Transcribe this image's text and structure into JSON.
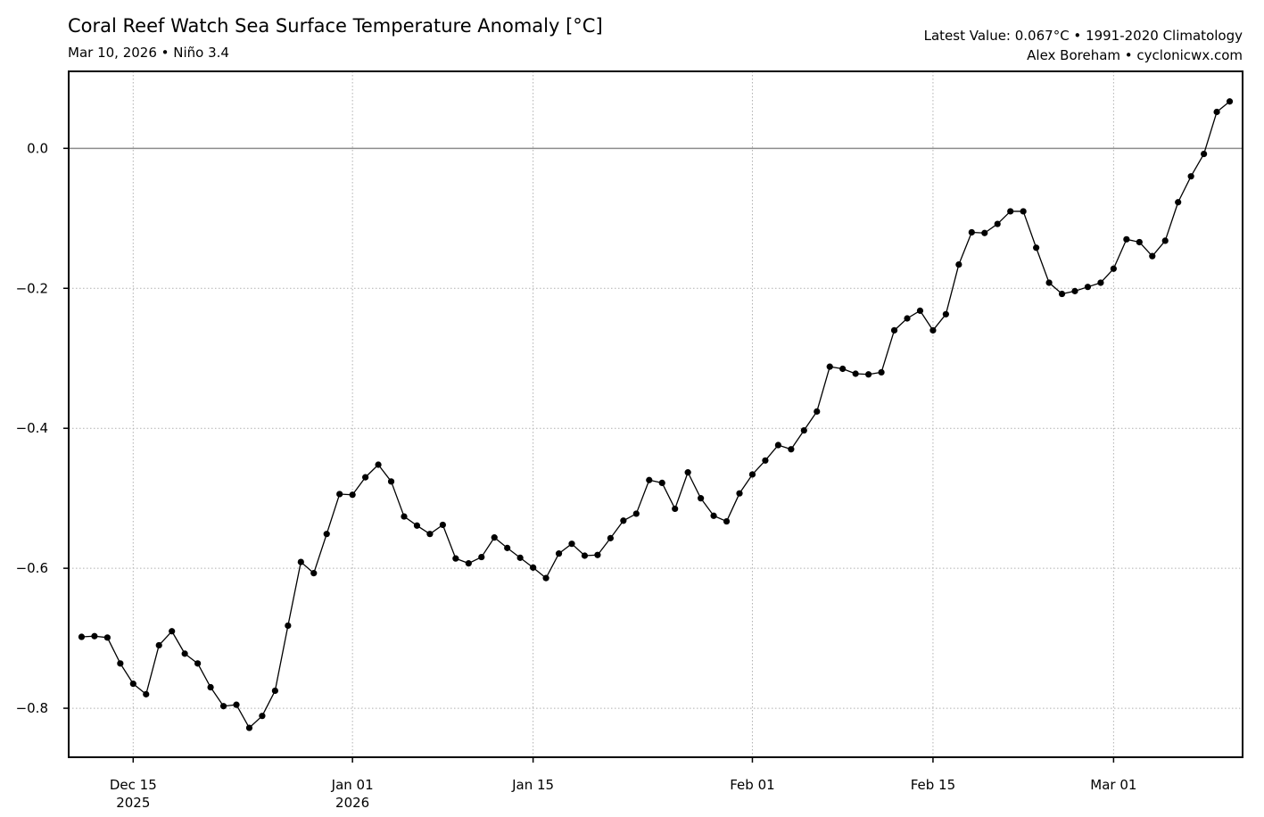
{
  "header": {
    "title": "Coral Reef Watch Sea Surface Temperature Anomaly [°C]",
    "subtitle": "Mar 10, 2026 • Niño 3.4",
    "info_line1": "Latest Value: 0.067°C • 1991-2020 Climatology",
    "info_line2": "Alex Boreham • cyclonicwx.com"
  },
  "chart_data": {
    "type": "line",
    "title": "Coral Reef Watch Sea Surface Temperature Anomaly [°C]",
    "subtitle": "Mar 10, 2026 • Niño 3.4",
    "xlabel": "",
    "ylabel": "",
    "x_start": "2025-12-11",
    "x_end": "2026-03-10",
    "xlim": [
      "2025-12-10",
      "2026-03-11"
    ],
    "ylim": [
      -0.87,
      0.11
    ],
    "grid": true,
    "grid_style": "dotted",
    "zero_line": true,
    "line_color": "#000000",
    "marker": "circle",
    "yticks": [
      0.0,
      -0.2,
      -0.4,
      -0.6,
      -0.8
    ],
    "ytick_labels": [
      "0.0",
      "−0.2",
      "−0.4",
      "−0.6",
      "−0.8"
    ],
    "xticks": [
      {
        "date": "2025-12-15",
        "label": "Dec 15",
        "sublabel": "2025"
      },
      {
        "date": "2026-01-01",
        "label": "Jan 01",
        "sublabel": "2026"
      },
      {
        "date": "2026-01-15",
        "label": "Jan 15",
        "sublabel": ""
      },
      {
        "date": "2026-02-01",
        "label": "Feb 01",
        "sublabel": ""
      },
      {
        "date": "2026-02-15",
        "label": "Feb 15",
        "sublabel": ""
      },
      {
        "date": "2026-03-01",
        "label": "Mar 01",
        "sublabel": ""
      }
    ],
    "series": [
      {
        "values": [
          -0.698,
          -0.697,
          -0.699,
          -0.736,
          -0.765,
          -0.78,
          -0.71,
          -0.69,
          -0.722,
          -0.736,
          -0.77,
          -0.797,
          -0.795,
          -0.828,
          -0.811,
          -0.775,
          -0.682,
          -0.591,
          -0.607,
          -0.551,
          -0.494,
          -0.495,
          -0.47,
          -0.452,
          -0.476,
          -0.526,
          -0.539,
          -0.551,
          -0.538,
          -0.586,
          -0.593,
          -0.584,
          -0.556,
          -0.571,
          -0.585,
          -0.599,
          -0.614,
          -0.579,
          -0.565,
          -0.582,
          -0.581,
          -0.557,
          -0.532,
          -0.522,
          -0.474,
          -0.478,
          -0.515,
          -0.463,
          -0.5,
          -0.525,
          -0.533,
          -0.493,
          -0.466,
          -0.446,
          -0.424,
          -0.43,
          -0.403,
          -0.376,
          -0.312,
          -0.315,
          -0.322,
          -0.323,
          -0.32,
          -0.26,
          -0.243,
          -0.232,
          -0.26,
          -0.237,
          -0.166,
          -0.12,
          -0.121,
          -0.108,
          -0.09,
          -0.09,
          -0.142,
          -0.192,
          -0.208,
          -0.204,
          -0.198,
          -0.192,
          -0.172,
          -0.13,
          -0.134,
          -0.154,
          -0.132,
          -0.077,
          -0.04,
          -0.008,
          0.052,
          0.067
        ]
      }
    ]
  }
}
